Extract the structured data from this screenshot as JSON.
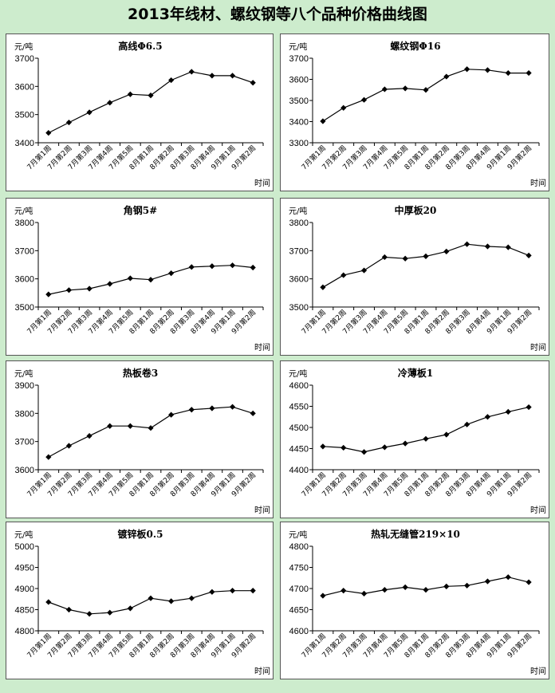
{
  "title": "2013年线材、螺纹钢等八个品种价格曲线图",
  "chart_data": [
    {
      "type": "line",
      "title": "高线Φ6.5",
      "ylabel": "元/吨",
      "xlabel": "时间",
      "categories": [
        "7月第1周",
        "7月第2周",
        "7月第3周",
        "7月第4周",
        "7月第5周",
        "8月第1周",
        "8月第2周",
        "8月第3周",
        "8月第4周",
        "9月第1周",
        "9月第2周"
      ],
      "values": [
        3435,
        3472,
        3508,
        3542,
        3572,
        3568,
        3622,
        3652,
        3638,
        3638,
        3613
      ],
      "ylim": [
        3400,
        3700
      ],
      "yticks": [
        3400,
        3500,
        3600,
        3700
      ]
    },
    {
      "type": "line",
      "title": "螺纹钢Φ16",
      "ylabel": "元/吨",
      "xlabel": "时间",
      "categories": [
        "7月第1周",
        "7月第2周",
        "7月第3周",
        "7月第4周",
        "7月第5周",
        "8月第1周",
        "8月第2周",
        "8月第3周",
        "8月第4周",
        "9月第1周",
        "9月第2周"
      ],
      "values": [
        3402,
        3465,
        3503,
        3553,
        3557,
        3550,
        3613,
        3648,
        3644,
        3630,
        3630
      ],
      "ylim": [
        3300,
        3700
      ],
      "yticks": [
        3300,
        3400,
        3500,
        3600,
        3700
      ]
    },
    {
      "type": "line",
      "title": "角钢5#",
      "ylabel": "元/吨",
      "xlabel": "时间",
      "categories": [
        "7月第1周",
        "7月第2周",
        "7月第3周",
        "7月第4周",
        "7月第5周",
        "8月第1周",
        "8月第2周",
        "8月第3周",
        "8月第4周",
        "9月第1周",
        "9月第2周"
      ],
      "values": [
        3545,
        3560,
        3565,
        3582,
        3602,
        3597,
        3620,
        3642,
        3645,
        3648,
        3640
      ],
      "ylim": [
        3500,
        3800
      ],
      "yticks": [
        3500,
        3600,
        3700,
        3800
      ]
    },
    {
      "type": "line",
      "title": "中厚板20",
      "ylabel": "元/吨",
      "xlabel": "时间",
      "categories": [
        "7月第1周",
        "7月第2周",
        "7月第3周",
        "7月第4周",
        "7月第5周",
        "8月第1周",
        "8月第2周",
        "8月第3周",
        "8月第4周",
        "9月第1周",
        "9月第2周"
      ],
      "values": [
        3570,
        3613,
        3630,
        3677,
        3672,
        3680,
        3697,
        3723,
        3715,
        3712,
        3683
      ],
      "ylim": [
        3500,
        3800
      ],
      "yticks": [
        3500,
        3600,
        3700,
        3800
      ]
    },
    {
      "type": "line",
      "title": "热板卷3",
      "ylabel": "元/吨",
      "xlabel": "时间",
      "categories": [
        "7月第1周",
        "7月第2周",
        "7月第3周",
        "7月第4周",
        "7月第5周",
        "8月第1周",
        "8月第2周",
        "8月第3周",
        "8月第4周",
        "9月第1周",
        "9月第2周"
      ],
      "values": [
        3645,
        3685,
        3720,
        3755,
        3755,
        3748,
        3795,
        3813,
        3818,
        3823,
        3800
      ],
      "ylim": [
        3600,
        3900
      ],
      "yticks": [
        3600,
        3700,
        3800,
        3900
      ]
    },
    {
      "type": "line",
      "title": "冷薄板1",
      "ylabel": "元/吨",
      "xlabel": "时间",
      "categories": [
        "7月第1周",
        "7月第2周",
        "7月第3周",
        "7月第4周",
        "7月第5周",
        "8月第1周",
        "8月第2周",
        "8月第3周",
        "8月第4周",
        "9月第1周",
        "9月第2周"
      ],
      "values": [
        4455,
        4452,
        4442,
        4453,
        4462,
        4473,
        4483,
        4507,
        4525,
        4537,
        4548
      ],
      "ylim": [
        4400,
        4600
      ],
      "yticks": [
        4400,
        4450,
        4500,
        4550,
        4600
      ]
    },
    {
      "type": "line",
      "title": "镀锌板0.5",
      "ylabel": "元/吨",
      "xlabel": "时间",
      "categories": [
        "7月第1周",
        "7月第2周",
        "7月第3周",
        "7月第4周",
        "7月第5周",
        "8月第1周",
        "8月第2周",
        "8月第3周",
        "8月第4周",
        "9月第1周",
        "9月第2周"
      ],
      "values": [
        4868,
        4850,
        4840,
        4843,
        4853,
        4877,
        4870,
        4877,
        4892,
        4895,
        4895
      ],
      "ylim": [
        4800,
        5000
      ],
      "yticks": [
        4800,
        4850,
        4900,
        4950,
        5000
      ]
    },
    {
      "type": "line",
      "title": "热轧无缝管219×10",
      "ylabel": "元/吨",
      "xlabel": "时间",
      "categories": [
        "7月第1周",
        "7月第2周",
        "7月第3周",
        "7月第4周",
        "7月第5周",
        "8月第1周",
        "8月第2周",
        "8月第3周",
        "8月第4周",
        "9月第1周",
        "9月第2周"
      ],
      "values": [
        4683,
        4695,
        4688,
        4697,
        4703,
        4697,
        4705,
        4707,
        4717,
        4727,
        4715
      ],
      "ylim": [
        4600,
        4800
      ],
      "yticks": [
        4600,
        4650,
        4700,
        4750,
        4800
      ]
    }
  ]
}
